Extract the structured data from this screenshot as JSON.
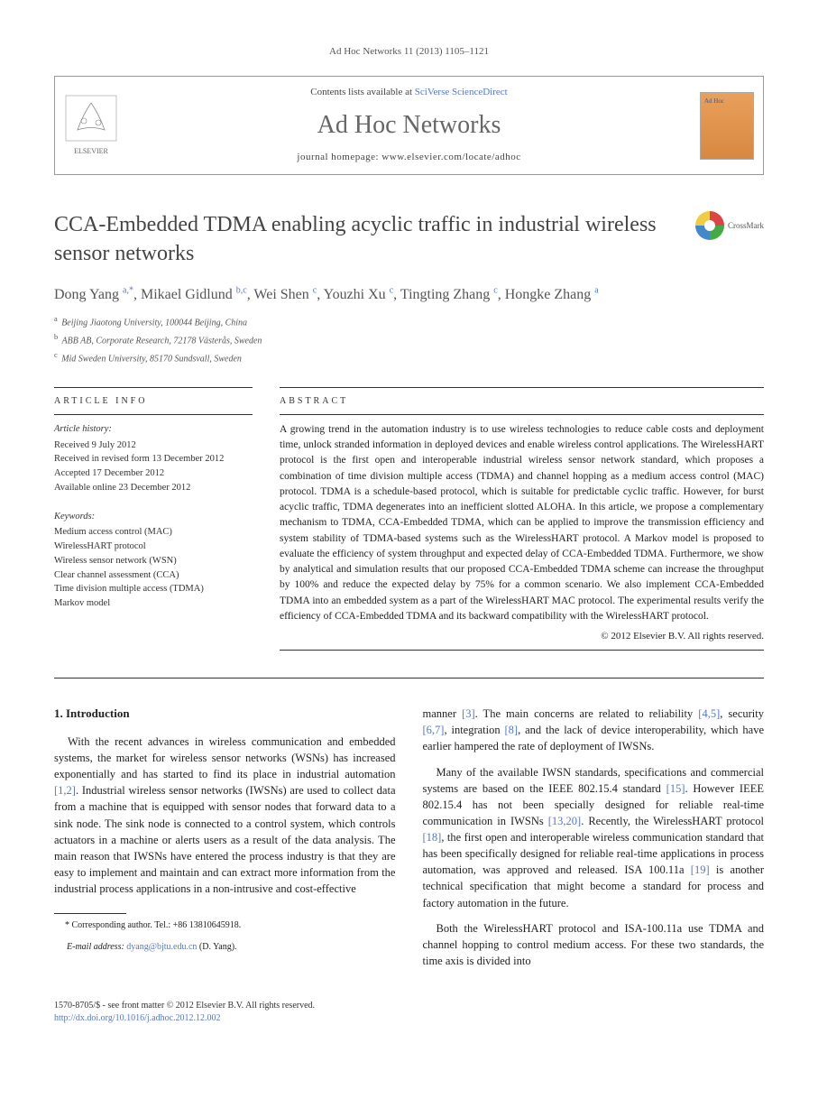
{
  "journal_ref": "Ad Hoc Networks 11 (2013) 1105–1121",
  "header": {
    "contents_prefix": "Contents lists available at ",
    "contents_link": "SciVerse ScienceDirect",
    "journal_name": "Ad Hoc Networks",
    "homepage_label": "journal homepage: www.elsevier.com/locate/adhoc",
    "publisher": "ELSEVIER",
    "cover_label": "Ad Hoc Networks"
  },
  "crossmark": "CrossMark",
  "title": "CCA-Embedded TDMA enabling acyclic traffic in industrial wireless sensor networks",
  "authors_html": "Dong Yang <sup>a,*</sup>, Mikael Gidlund <sup>b,c</sup>, Wei Shen <sup>c</sup>, Youzhi Xu <sup>c</sup>, Tingting Zhang <sup>c</sup>, Hongke Zhang <sup>a</sup>",
  "affiliations": [
    {
      "sup": "a",
      "text": "Beijing Jiaotong University, 100044 Beijing, China"
    },
    {
      "sup": "b",
      "text": "ABB AB, Corporate Research, 72178 Västerås, Sweden"
    },
    {
      "sup": "c",
      "text": "Mid Sweden University, 85170 Sundsvall, Sweden"
    }
  ],
  "article_info": {
    "heading": "article info",
    "history_label": "Article history:",
    "history": [
      "Received 9 July 2012",
      "Received in revised form 13 December 2012",
      "Accepted 17 December 2012",
      "Available online 23 December 2012"
    ],
    "keywords_label": "Keywords:",
    "keywords": [
      "Medium access control (MAC)",
      "WirelessHART protocol",
      "Wireless sensor network (WSN)",
      "Clear channel assessment (CCA)",
      "Time division multiple access (TDMA)",
      "Markov model"
    ]
  },
  "abstract": {
    "heading": "abstract",
    "text": "A growing trend in the automation industry is to use wireless technologies to reduce cable costs and deployment time, unlock stranded information in deployed devices and enable wireless control applications. The WirelessHART protocol is the first open and interoperable industrial wireless sensor network standard, which proposes a combination of time division multiple access (TDMA) and channel hopping as a medium access control (MAC) protocol. TDMA is a schedule-based protocol, which is suitable for predictable cyclic traffic. However, for burst acyclic traffic, TDMA degenerates into an inefficient slotted ALOHA. In this article, we propose a complementary mechanism to TDMA, CCA-Embedded TDMA, which can be applied to improve the transmission efficiency and system stability of TDMA-based systems such as the WirelessHART protocol. A Markov model is proposed to evaluate the efficiency of system throughput and expected delay of CCA-Embedded TDMA. Furthermore, we show by analytical and simulation results that our proposed CCA-Embedded TDMA scheme can increase the throughput by 100% and reduce the expected delay by 75% for a common scenario. We also implement CCA-Embedded TDMA into an embedded system as a part of the WirelessHART MAC protocol. The experimental results verify the efficiency of CCA-Embedded TDMA and its backward compatibility with the WirelessHART protocol.",
    "copyright": "© 2012 Elsevier B.V. All rights reserved."
  },
  "intro": {
    "heading": "1. Introduction",
    "p1_pre": "With the recent advances in wireless communication and embedded systems, the market for wireless sensor networks (WSNs) has increased exponentially and has started to find its place in industrial automation ",
    "p1_ref1": "[1,2]",
    "p1_post": ". Industrial wireless sensor networks (IWSNs) are used to collect data from a machine that is equipped with sensor nodes that forward data to a sink node. The sink node is connected to a control system, which controls actuators in a machine or alerts users as a result of the data analysis. The main reason that IWSNs have entered the process industry is that they are easy to implement and maintain and can extract more information from the industrial process applications in a non-intrusive and cost-effective",
    "p2_a": "manner ",
    "p2_ref3": "[3]",
    "p2_b": ". The main concerns are related to reliability ",
    "p2_ref45": "[4,5]",
    "p2_c": ", security ",
    "p2_ref67": "[6,7]",
    "p2_d": ", integration ",
    "p2_ref8": "[8]",
    "p2_e": ", and the lack of device interoperability, which have earlier hampered the rate of deployment of IWSNs.",
    "p3_a": "Many of the available IWSN standards, specifications and commercial systems are based on the IEEE 802.15.4 standard ",
    "p3_ref15": "[15]",
    "p3_b": ". However IEEE 802.15.4 has not been specially designed for reliable real-time communication in IWSNs ",
    "p3_ref1320": "[13,20]",
    "p3_c": ". Recently, the WirelessHART protocol ",
    "p3_ref18": "[18]",
    "p3_d": ", the first open and interoperable wireless communication standard that has been specifically designed for reliable real-time applications in process automation, was approved and released. ISA 100.11a ",
    "p3_ref19": "[19]",
    "p3_e": " is another technical specification that might become a standard for process and factory automation in the future.",
    "p4": "Both the WirelessHART protocol and ISA-100.11a use TDMA and channel hopping to control medium access. For these two standards, the time axis is divided into"
  },
  "footnote": {
    "corr": "* Corresponding author. Tel.: +86 13810645918.",
    "email_label": "E-mail address:",
    "email": "dyang@bjtu.edu.cn",
    "email_who": "(D. Yang)."
  },
  "footer": {
    "line1": "1570-8705/$ - see front matter © 2012 Elsevier B.V. All rights reserved.",
    "doi": "http://dx.doi.org/10.1016/j.adhoc.2012.12.002"
  },
  "colors": {
    "link": "#5577cc",
    "text": "#222222",
    "muted": "#555555",
    "rule": "#333333"
  }
}
